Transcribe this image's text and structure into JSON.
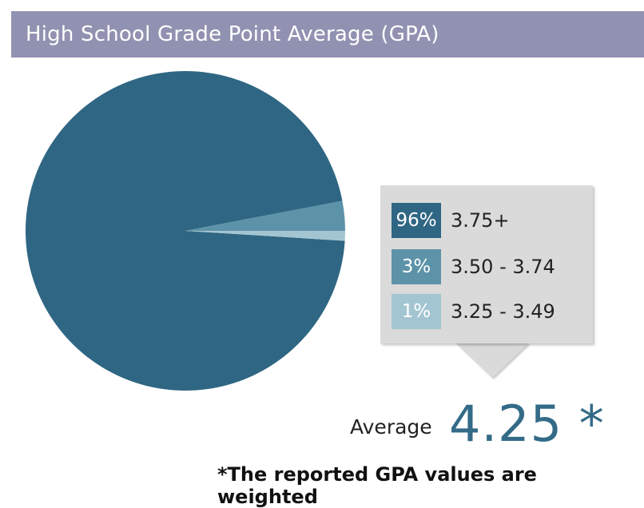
{
  "title": "High School Grade Point Average (GPA)",
  "chart_data": {
    "type": "pie",
    "slices": [
      {
        "percent_label": "96%",
        "range_label": "3.75+",
        "value": 96,
        "color": "#2f6683"
      },
      {
        "percent_label": "3%",
        "range_label": "3.50 - 3.74",
        "value": 3,
        "color": "#5d93a8"
      },
      {
        "percent_label": "1%",
        "range_label": "3.25 - 3.49",
        "value": 1,
        "color": "#a3c5d1"
      }
    ]
  },
  "average": {
    "label": "Average",
    "value": "4.25 *"
  },
  "footnote": "*The reported GPA values are weighted"
}
